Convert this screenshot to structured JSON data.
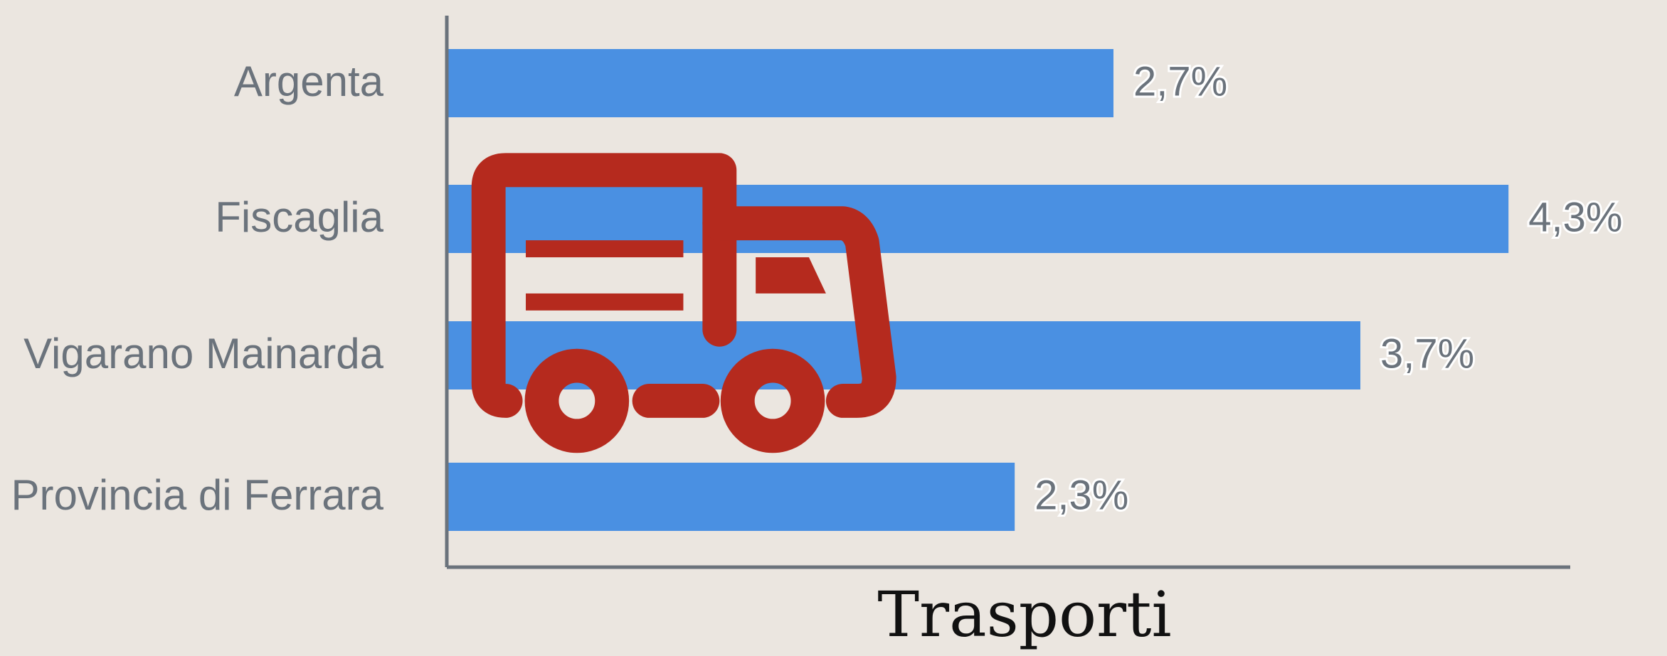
{
  "chart_data": {
    "type": "bar",
    "orientation": "horizontal",
    "title": "Trasporti",
    "categories": [
      "Argenta",
      "Fiscaglia",
      "Vigarano Mainarda",
      "Provincia di Ferrara"
    ],
    "values": [
      2.7,
      4.3,
      3.7,
      2.3
    ],
    "value_labels": [
      "2,7%",
      "4,3%",
      "3,7%",
      "2,3%"
    ],
    "color": "#4a90e2",
    "xlim": [
      0,
      4.55
    ]
  }
}
